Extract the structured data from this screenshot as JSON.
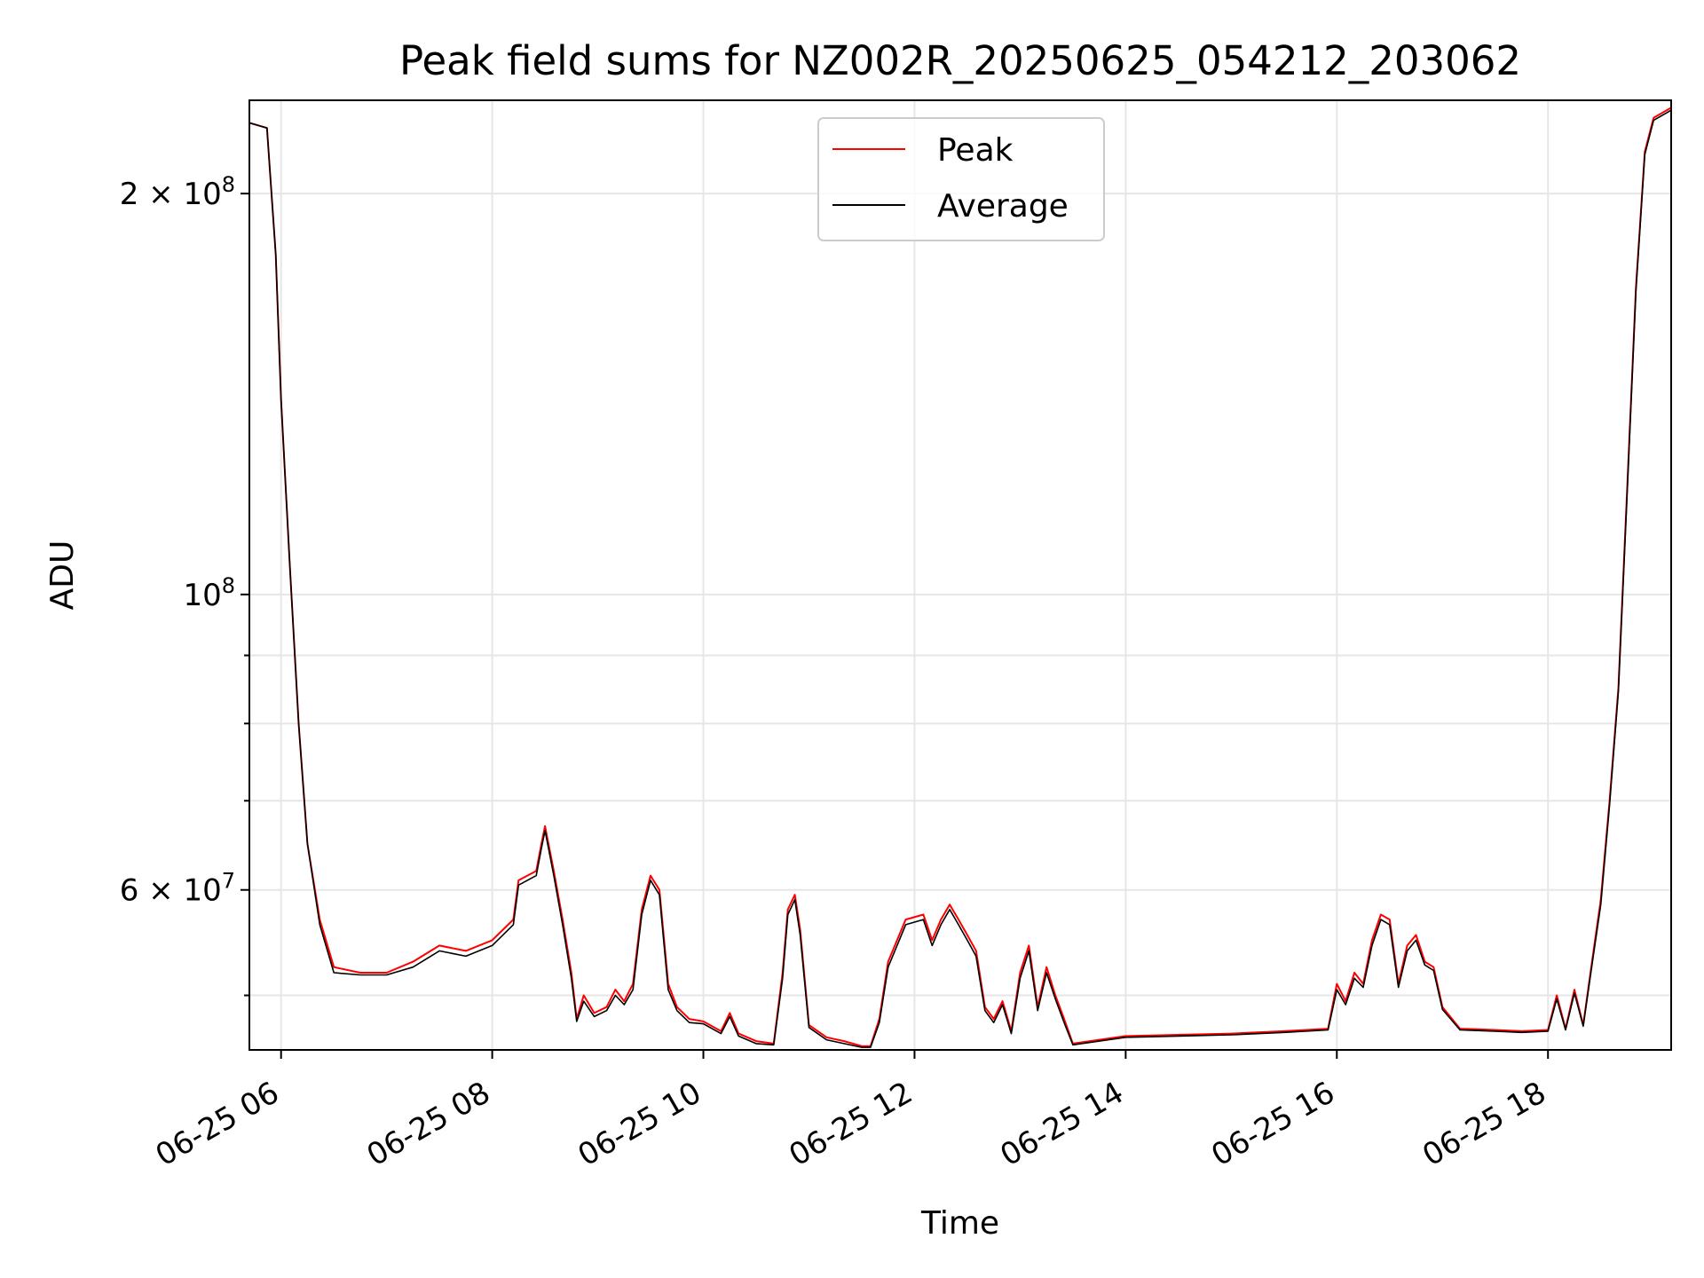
{
  "chart_data": {
    "type": "line",
    "title": "Peak field sums for NZ002R_20250625_054212_203062",
    "xlabel": "Time",
    "ylabel": "ADU",
    "x_unit": "time of day, 2025-06-25",
    "xlim": [
      "05:42",
      "19:10"
    ],
    "ylim": [
      45500000,
      235000000
    ],
    "yscale": "log",
    "grid": true,
    "legend_position": "top-center",
    "x_ticks": [
      "06:00",
      "08:00",
      "10:00",
      "12:00",
      "14:00",
      "16:00",
      "18:00"
    ],
    "x_tick_labels": [
      "06-25 06",
      "06-25 08",
      "06-25 10",
      "06-25 12",
      "06-25 14",
      "06-25 16",
      "06-25 18"
    ],
    "y_major_ticks": [
      {
        "value": 200000000,
        "label_base": "2 × 10",
        "label_exp": "8"
      },
      {
        "value": 100000000,
        "label_base": "10",
        "label_exp": "8"
      },
      {
        "value": 60000000,
        "label_base": "6 × 10",
        "label_exp": "7"
      }
    ],
    "y_minor_ticks": [
      50000000,
      70000000,
      80000000,
      90000000
    ],
    "colors": {
      "peak": "#ff0000",
      "average": "#000000"
    },
    "series": [
      {
        "name": "Peak",
        "color": "#ff0000",
        "points": [
          [
            "05:42",
            226000000
          ],
          [
            "05:52",
            224000000
          ],
          [
            "05:57",
            180000000
          ],
          [
            "06:00",
            140000000
          ],
          [
            "06:05",
            105000000
          ],
          [
            "06:10",
            80000000
          ],
          [
            "06:15",
            65000000
          ],
          [
            "06:22",
            57000000
          ],
          [
            "06:30",
            52500000
          ],
          [
            "06:45",
            52000000
          ],
          [
            "07:00",
            52000000
          ],
          [
            "07:15",
            53000000
          ],
          [
            "07:30",
            54500000
          ],
          [
            "07:45",
            54000000
          ],
          [
            "08:00",
            55000000
          ],
          [
            "08:12",
            57000000
          ],
          [
            "08:15",
            61000000
          ],
          [
            "08:25",
            62000000
          ],
          [
            "08:28",
            65000000
          ],
          [
            "08:30",
            67000000
          ],
          [
            "08:35",
            62000000
          ],
          [
            "08:40",
            57000000
          ],
          [
            "08:45",
            52000000
          ],
          [
            "08:48",
            48000000
          ],
          [
            "08:52",
            50000000
          ],
          [
            "08:58",
            48500000
          ],
          [
            "09:05",
            49000000
          ],
          [
            "09:10",
            50500000
          ],
          [
            "09:15",
            49500000
          ],
          [
            "09:20",
            51000000
          ],
          [
            "09:25",
            58000000
          ],
          [
            "09:30",
            61500000
          ],
          [
            "09:35",
            60000000
          ],
          [
            "09:40",
            51000000
          ],
          [
            "09:45",
            49000000
          ],
          [
            "09:52",
            48000000
          ],
          [
            "10:00",
            47800000
          ],
          [
            "10:10",
            47000000
          ],
          [
            "10:15",
            48500000
          ],
          [
            "10:20",
            46800000
          ],
          [
            "10:30",
            46200000
          ],
          [
            "10:40",
            46000000
          ],
          [
            "10:45",
            52000000
          ],
          [
            "10:48",
            58000000
          ],
          [
            "10:52",
            59500000
          ],
          [
            "10:55",
            56000000
          ],
          [
            "11:00",
            47500000
          ],
          [
            "11:10",
            46500000
          ],
          [
            "11:20",
            46200000
          ],
          [
            "11:30",
            45800000
          ],
          [
            "11:35",
            45800000
          ],
          [
            "11:40",
            48000000
          ],
          [
            "11:45",
            53000000
          ],
          [
            "11:55",
            57000000
          ],
          [
            "12:05",
            57500000
          ],
          [
            "12:10",
            55000000
          ],
          [
            "12:15",
            57000000
          ],
          [
            "12:20",
            58500000
          ],
          [
            "12:25",
            57000000
          ],
          [
            "12:30",
            55500000
          ],
          [
            "12:35",
            54000000
          ],
          [
            "12:40",
            49000000
          ],
          [
            "12:45",
            48000000
          ],
          [
            "12:50",
            49500000
          ],
          [
            "12:55",
            47000000
          ],
          [
            "13:00",
            52000000
          ],
          [
            "13:05",
            54500000
          ],
          [
            "13:10",
            49000000
          ],
          [
            "13:15",
            52500000
          ],
          [
            "13:20",
            50000000
          ],
          [
            "13:25",
            48000000
          ],
          [
            "13:30",
            46000000
          ],
          [
            "13:45",
            46300000
          ],
          [
            "14:00",
            46600000
          ],
          [
            "14:30",
            46700000
          ],
          [
            "15:00",
            46800000
          ],
          [
            "15:30",
            47000000
          ],
          [
            "15:55",
            47200000
          ],
          [
            "16:00",
            51000000
          ],
          [
            "16:05",
            49500000
          ],
          [
            "16:10",
            52000000
          ],
          [
            "16:15",
            51000000
          ],
          [
            "16:20",
            55000000
          ],
          [
            "16:25",
            57500000
          ],
          [
            "16:30",
            57000000
          ],
          [
            "16:35",
            51000000
          ],
          [
            "16:40",
            54500000
          ],
          [
            "16:45",
            55500000
          ],
          [
            "16:50",
            53000000
          ],
          [
            "16:55",
            52500000
          ],
          [
            "17:00",
            49000000
          ],
          [
            "17:10",
            47200000
          ],
          [
            "17:30",
            47100000
          ],
          [
            "17:45",
            47000000
          ],
          [
            "18:00",
            47100000
          ],
          [
            "18:05",
            50000000
          ],
          [
            "18:10",
            47200000
          ],
          [
            "18:15",
            50500000
          ],
          [
            "18:20",
            47500000
          ],
          [
            "18:25",
            53000000
          ],
          [
            "18:30",
            59000000
          ],
          [
            "18:35",
            70000000
          ],
          [
            "18:40",
            85000000
          ],
          [
            "18:45",
            120000000
          ],
          [
            "18:50",
            170000000
          ],
          [
            "18:55",
            215000000
          ],
          [
            "19:00",
            228000000
          ],
          [
            "19:10",
            232000000
          ]
        ]
      },
      {
        "name": "Average",
        "color": "#000000",
        "points": [
          [
            "05:42",
            226000000
          ],
          [
            "05:52",
            224000000
          ],
          [
            "05:57",
            180000000
          ],
          [
            "06:00",
            140000000
          ],
          [
            "06:05",
            105000000
          ],
          [
            "06:10",
            80000000
          ],
          [
            "06:15",
            65000000
          ],
          [
            "06:22",
            56500000
          ],
          [
            "06:30",
            52000000
          ],
          [
            "06:45",
            51800000
          ],
          [
            "07:00",
            51800000
          ],
          [
            "07:15",
            52500000
          ],
          [
            "07:30",
            54000000
          ],
          [
            "07:45",
            53500000
          ],
          [
            "08:00",
            54500000
          ],
          [
            "08:12",
            56500000
          ],
          [
            "08:15",
            60500000
          ],
          [
            "08:25",
            61500000
          ],
          [
            "08:28",
            64500000
          ],
          [
            "08:30",
            66500000
          ],
          [
            "08:35",
            61500000
          ],
          [
            "08:40",
            56500000
          ],
          [
            "08:45",
            51500000
          ],
          [
            "08:48",
            47800000
          ],
          [
            "08:52",
            49500000
          ],
          [
            "08:58",
            48200000
          ],
          [
            "09:05",
            48700000
          ],
          [
            "09:10",
            50000000
          ],
          [
            "09:15",
            49200000
          ],
          [
            "09:20",
            50500000
          ],
          [
            "09:25",
            57500000
          ],
          [
            "09:30",
            61000000
          ],
          [
            "09:35",
            59500000
          ],
          [
            "09:40",
            50500000
          ],
          [
            "09:45",
            48700000
          ],
          [
            "09:52",
            47700000
          ],
          [
            "10:00",
            47600000
          ],
          [
            "10:10",
            46800000
          ],
          [
            "10:15",
            48200000
          ],
          [
            "10:20",
            46600000
          ],
          [
            "10:30",
            46000000
          ],
          [
            "10:40",
            45900000
          ],
          [
            "10:45",
            51500000
          ],
          [
            "10:48",
            57500000
          ],
          [
            "10:52",
            59000000
          ],
          [
            "10:55",
            55500000
          ],
          [
            "11:00",
            47300000
          ],
          [
            "11:10",
            46300000
          ],
          [
            "11:20",
            46000000
          ],
          [
            "11:30",
            45700000
          ],
          [
            "11:35",
            45700000
          ],
          [
            "11:40",
            47700000
          ],
          [
            "11:45",
            52500000
          ],
          [
            "11:55",
            56500000
          ],
          [
            "12:05",
            57000000
          ],
          [
            "12:10",
            54500000
          ],
          [
            "12:15",
            56500000
          ],
          [
            "12:20",
            58000000
          ],
          [
            "12:25",
            56500000
          ],
          [
            "12:30",
            55000000
          ],
          [
            "12:35",
            53500000
          ],
          [
            "12:40",
            48700000
          ],
          [
            "12:45",
            47700000
          ],
          [
            "12:50",
            49200000
          ],
          [
            "12:55",
            46800000
          ],
          [
            "13:00",
            51500000
          ],
          [
            "13:05",
            54000000
          ],
          [
            "13:10",
            48700000
          ],
          [
            "13:15",
            52000000
          ],
          [
            "13:20",
            49700000
          ],
          [
            "13:25",
            47700000
          ],
          [
            "13:30",
            45900000
          ],
          [
            "13:45",
            46200000
          ],
          [
            "14:00",
            46500000
          ],
          [
            "14:30",
            46600000
          ],
          [
            "15:00",
            46700000
          ],
          [
            "15:30",
            46900000
          ],
          [
            "15:55",
            47100000
          ],
          [
            "16:00",
            50500000
          ],
          [
            "16:05",
            49200000
          ],
          [
            "16:10",
            51500000
          ],
          [
            "16:15",
            50700000
          ],
          [
            "16:20",
            54500000
          ],
          [
            "16:25",
            57000000
          ],
          [
            "16:30",
            56500000
          ],
          [
            "16:35",
            50700000
          ],
          [
            "16:40",
            54000000
          ],
          [
            "16:45",
            55000000
          ],
          [
            "16:50",
            52700000
          ],
          [
            "16:55",
            52200000
          ],
          [
            "17:00",
            48800000
          ],
          [
            "17:10",
            47100000
          ],
          [
            "17:30",
            47000000
          ],
          [
            "17:45",
            46900000
          ],
          [
            "18:00",
            47000000
          ],
          [
            "18:05",
            49700000
          ],
          [
            "18:10",
            47100000
          ],
          [
            "18:15",
            50200000
          ],
          [
            "18:20",
            47400000
          ],
          [
            "18:25",
            52700000
          ],
          [
            "18:30",
            58500000
          ],
          [
            "18:35",
            69500000
          ],
          [
            "18:40",
            84500000
          ],
          [
            "18:45",
            119000000
          ],
          [
            "18:50",
            169000000
          ],
          [
            "18:55",
            214000000
          ],
          [
            "19:00",
            227000000
          ],
          [
            "19:10",
            231000000
          ]
        ]
      }
    ]
  }
}
